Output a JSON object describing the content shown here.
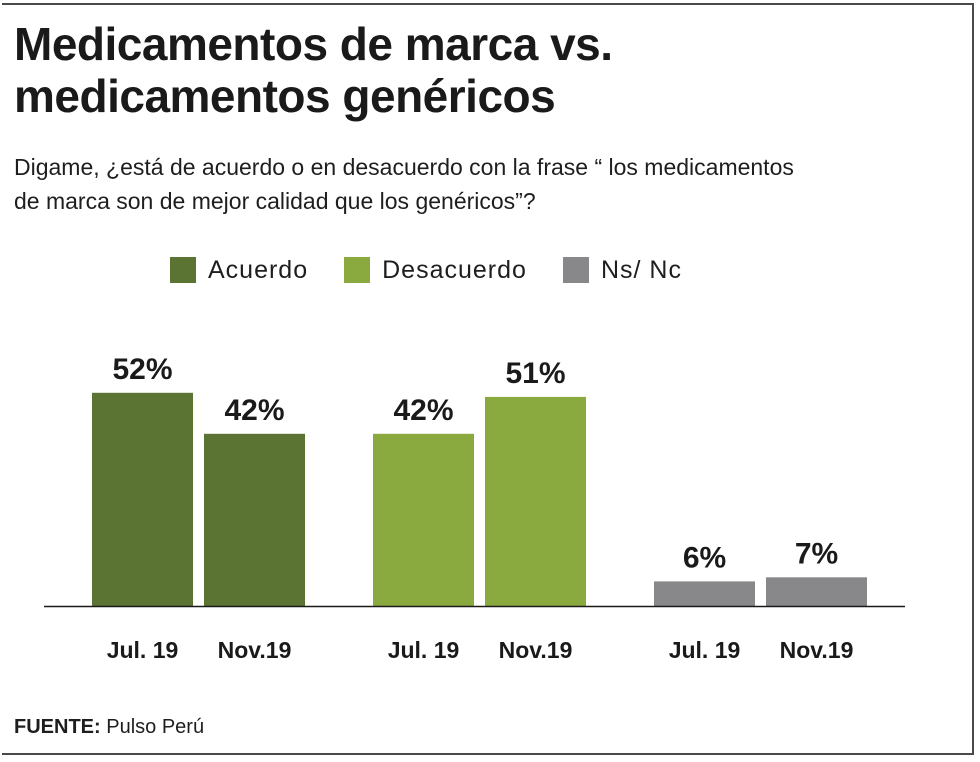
{
  "title_line1": "Medicamentos de marca vs.",
  "title_line2": "medicamentos genéricos",
  "subtitle_line1": "Digame, ¿está de acuerdo o en desacuerdo con la frase “ los medicamentos",
  "subtitle_line2": "de marca son de mejor calidad que los genéricos”?",
  "source_label": "FUENTE:",
  "source_value": "Pulso Perú",
  "chart_data": {
    "type": "bar",
    "title": "Medicamentos de marca vs. medicamentos genéricos",
    "categories": [
      "Jul. 19",
      "Nov.19"
    ],
    "value_suffix": "%",
    "ylim": [
      0,
      60
    ],
    "grid": false,
    "legend_position": "top",
    "series": [
      {
        "name": "Acuerdo",
        "color": "#5b7433",
        "values": [
          52,
          42
        ]
      },
      {
        "name": "Desacuerdo",
        "color": "#8aaa3f",
        "values": [
          42,
          51
        ]
      },
      {
        "name": "Ns/ Nc",
        "color": "#88888b",
        "values": [
          6,
          7
        ]
      }
    ]
  }
}
